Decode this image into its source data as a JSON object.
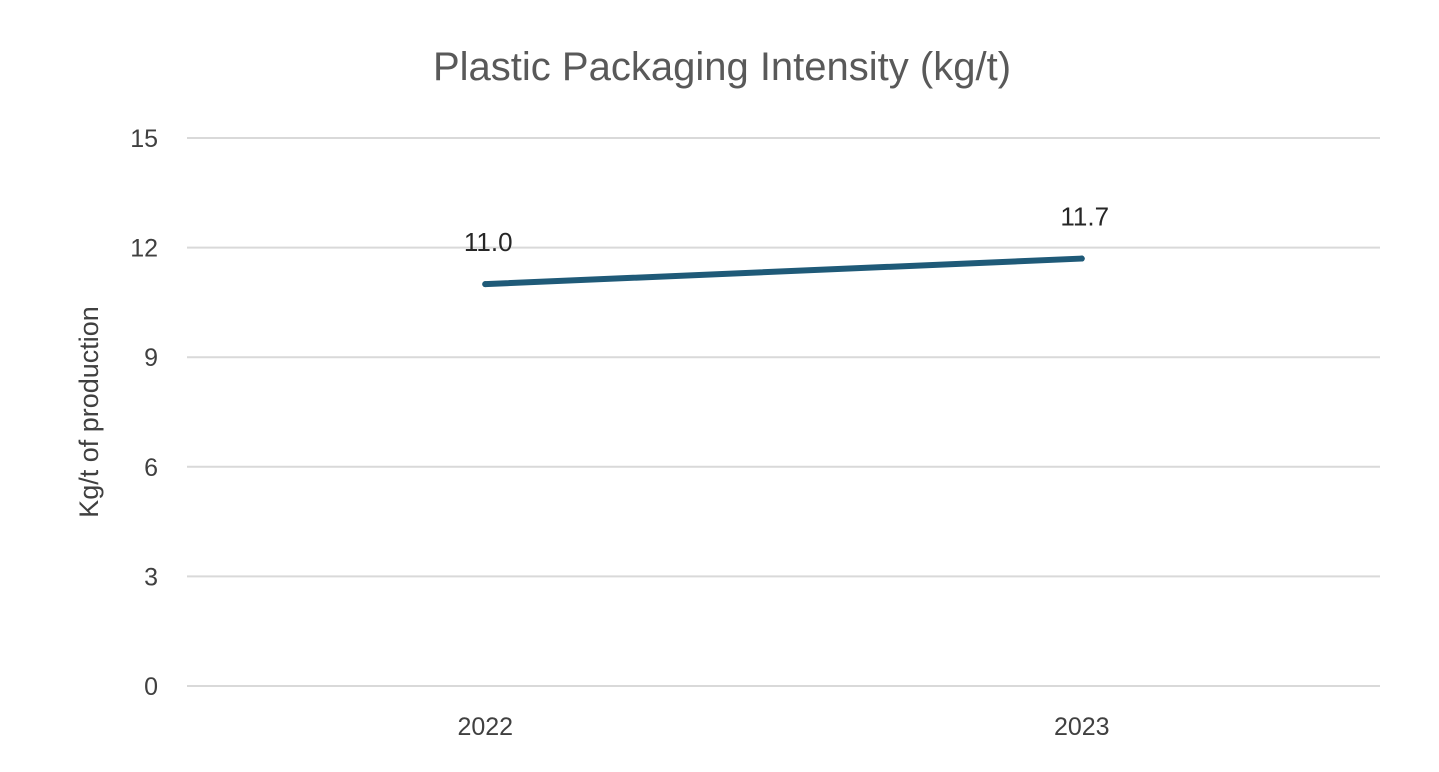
{
  "chart_data": {
    "type": "line",
    "title": "Plastic Packaging Intensity (kg/t)",
    "xlabel": "",
    "ylabel": "Kg/t of production",
    "categories": [
      "2022",
      "2023"
    ],
    "series": [
      {
        "name": "Plastic Packaging Intensity",
        "values": [
          11.0,
          11.7
        ],
        "labels": [
          "11.0",
          "11.7"
        ],
        "color": "#1f5a78"
      }
    ],
    "ylim": [
      0,
      15
    ],
    "yticks": [
      0,
      3,
      6,
      9,
      12,
      15
    ],
    "ytick_labels": [
      "0",
      "3",
      "6",
      "9",
      "12",
      "15"
    ],
    "grid": true,
    "legend": "none",
    "colors": {
      "grid": "#d9d9d9",
      "title": "#595959",
      "text": "#404040"
    }
  }
}
